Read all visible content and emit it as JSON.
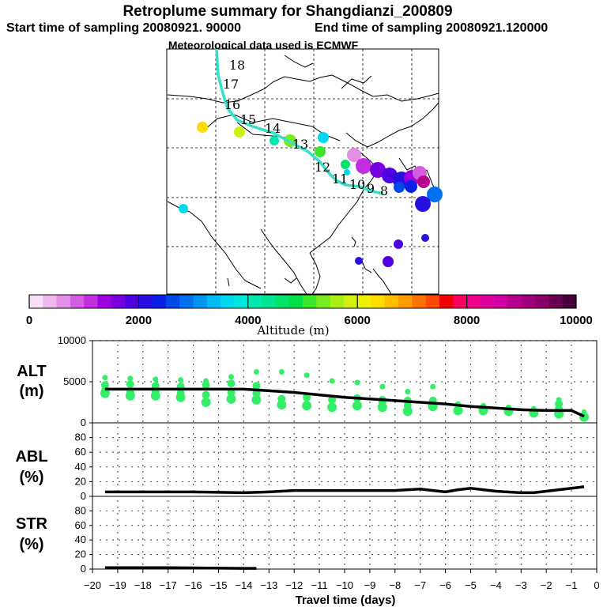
{
  "title": "Retroplume summary for Shangdianzi_200809",
  "subtitle_start": "Start time of sampling 20080921. 90000",
  "subtitle_end": "End time of sampling 20080921.120000",
  "subtitle_met": "Meteorological data used is ECMWF",
  "colors": {
    "trajectory": "#34e0c8",
    "point": "#33ee66",
    "line": "#000000",
    "scale": [
      "#f5e0f5",
      "#eeb8ee",
      "#e28ee6",
      "#d45ee0",
      "#c030e0",
      "#a000e0",
      "#7800e0",
      "#5000e0",
      "#2810e0",
      "#0a20e6",
      "#0048e8",
      "#0070ee",
      "#0096f0",
      "#00bcf4",
      "#00d8f0",
      "#00e8dc",
      "#00e8b0",
      "#00e690",
      "#00e268",
      "#00e044",
      "#3ce628",
      "#78ea20",
      "#aaee18",
      "#d0f010",
      "#eef000",
      "#ffdc00",
      "#ffbc00",
      "#ff9a00",
      "#ff7200",
      "#ff4800",
      "#f00000",
      "#f80060",
      "#f0008a",
      "#e0009c",
      "#d000a6",
      "#b80090",
      "#a0007c",
      "#880068",
      "#6a0050",
      "#4a003a"
    ]
  },
  "colorbar": {
    "ticks": [
      "0",
      "2000",
      "4000",
      "6000",
      "8000",
      "10000"
    ],
    "label": "Altitude (m)"
  },
  "map": {
    "trajectory_labels": [
      "18",
      "17",
      "16",
      "15",
      "14",
      "13",
      "12",
      "11",
      "10",
      "9",
      "8"
    ]
  },
  "chart_data": [
    {
      "type": "line",
      "panel": "ALT",
      "ylabel": "ALT\n(m)",
      "ylabel_line1": "ALT",
      "ylabel_line2": "(m)",
      "ylim": [
        0,
        10000
      ],
      "yticks": [
        "0",
        "5000",
        "10000"
      ],
      "x": [
        -19.5,
        -19,
        -18,
        -17,
        -16,
        -15,
        -14,
        -13,
        -12,
        -11,
        -10,
        -9,
        -8,
        -7,
        -6,
        -5,
        -4,
        -3,
        -2,
        -1,
        -0.5
      ],
      "series": [
        {
          "name": "median altitude",
          "values": [
            4100,
            4100,
            4100,
            4100,
            4100,
            4100,
            4100,
            3900,
            3700,
            3400,
            3100,
            2900,
            2700,
            2500,
            2300,
            2000,
            1800,
            1600,
            1500,
            1500,
            800
          ]
        }
      ],
      "scatter": [
        {
          "x": -19.5,
          "values": [
            5500,
            4600,
            3900,
            3600
          ]
        },
        {
          "x": -18.5,
          "values": [
            5400,
            4700,
            3700,
            3300
          ]
        },
        {
          "x": -17.5,
          "values": [
            5300,
            4500,
            3800,
            3300
          ]
        },
        {
          "x": -16.5,
          "values": [
            5200,
            4400,
            3600,
            3100
          ]
        },
        {
          "x": -15.5,
          "values": [
            5100,
            4600,
            3400,
            2500
          ]
        },
        {
          "x": -14.5,
          "values": [
            5600,
            4800,
            3700,
            2900
          ]
        },
        {
          "x": -13.5,
          "values": [
            6200,
            4500,
            3600,
            2800
          ]
        },
        {
          "x": -12.5,
          "values": [
            6200,
            2900,
            2200
          ]
        },
        {
          "x": -11.5,
          "values": [
            5800,
            3100,
            2100
          ]
        },
        {
          "x": -10.5,
          "values": [
            5100,
            2800,
            1900
          ]
        },
        {
          "x": -9.5,
          "values": [
            4900,
            3000,
            2100
          ]
        },
        {
          "x": -8.5,
          "values": [
            4400,
            2800,
            2500,
            1900
          ]
        },
        {
          "x": -7.5,
          "values": [
            3800,
            2700,
            2100,
            1400
          ]
        },
        {
          "x": -6.5,
          "values": [
            4400,
            2700,
            2000
          ]
        },
        {
          "x": -5.5,
          "values": [
            2300,
            1500
          ]
        },
        {
          "x": -4.5,
          "values": [
            2100,
            1500
          ]
        },
        {
          "x": -3.5,
          "values": [
            1900,
            1400
          ]
        },
        {
          "x": -2.5,
          "values": [
            1700,
            1200
          ]
        },
        {
          "x": -1.5,
          "values": [
            2800,
            2300,
            1700,
            1100
          ]
        },
        {
          "x": -0.5,
          "values": [
            1300,
            700
          ]
        }
      ]
    },
    {
      "type": "line",
      "panel": "ABL",
      "ylabel": "ABL\n(%)",
      "ylabel_line1": "ABL",
      "ylabel_line2": "(%)",
      "ylim": [
        0,
        100
      ],
      "yticks": [
        "0",
        "20",
        "40",
        "60",
        "80"
      ],
      "x": [
        -19.5,
        -18,
        -16,
        -14,
        -13,
        -12,
        -10,
        -8,
        -7.5,
        -7,
        -6.5,
        -6,
        -5.5,
        -5,
        -4.5,
        -4,
        -3,
        -2.5,
        -2,
        -1,
        -0.5
      ],
      "series": [
        {
          "name": "ABL fraction",
          "values": [
            6,
            6,
            6,
            5,
            6,
            8,
            8,
            8,
            9,
            10,
            8,
            6,
            9,
            11,
            9,
            7,
            5,
            5,
            7,
            11,
            13
          ]
        }
      ]
    },
    {
      "type": "line",
      "panel": "STR",
      "ylabel": "STR\n(%)",
      "ylabel_line1": "STR",
      "ylabel_line2": "(%)",
      "ylim": [
        0,
        100
      ],
      "yticks": [
        "0",
        "20",
        "40",
        "60",
        "80"
      ],
      "xlabel": "Travel time (days)",
      "xlim": [
        -20,
        0
      ],
      "xticks": [
        "−20",
        "−19",
        "−18",
        "−17",
        "−16",
        "−15",
        "−14",
        "−13",
        "−12",
        "−11",
        "−10",
        "−9",
        "−8",
        "−7",
        "−6",
        "−5",
        "−4",
        "−3",
        "−2",
        "−1",
        "0"
      ],
      "x": [
        -19.5,
        -17,
        -14,
        -13.5
      ],
      "series": [
        {
          "name": "stratospheric fraction",
          "values": [
            2,
            2,
            1,
            1
          ]
        }
      ]
    }
  ]
}
